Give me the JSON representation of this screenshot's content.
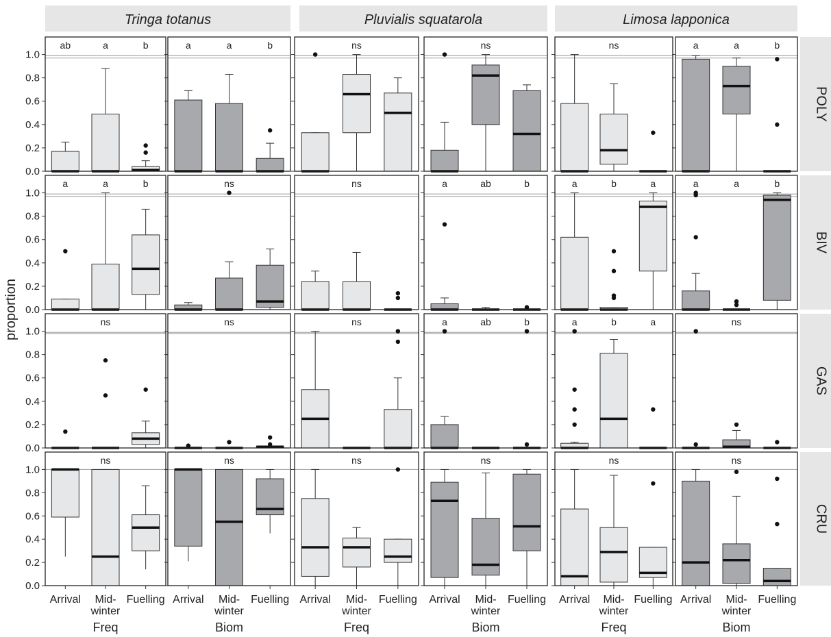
{
  "ylabel": "proportion",
  "yticks": [
    "0.0",
    "0.2",
    "0.4",
    "0.6",
    "0.8",
    "1.0"
  ],
  "species": [
    {
      "name": "Tringa totanus"
    },
    {
      "name": "Pluvialis squatarola"
    },
    {
      "name": "Limosa lapponica"
    }
  ],
  "prey": [
    "POLY",
    "BIV",
    "GAS",
    "CRU"
  ],
  "measures": [
    "Freq",
    "Biom"
  ],
  "periods": [
    [
      "Arrival"
    ],
    [
      "Mid-",
      "winter"
    ],
    [
      "Fuelling"
    ]
  ],
  "colors": {
    "Freq": "#e6e7e9",
    "Biom": "#a8a9ad",
    "strip": "#e6e6e6",
    "refline": "#aaaaaa"
  },
  "chart_data": {
    "type": "boxplot",
    "ylim": [
      0,
      1.15
    ],
    "facets": [
      {
        "species": "Tringa totanus",
        "measure": "Freq",
        "prey": "POLY",
        "sig": [
          "ab",
          "a",
          "b"
        ],
        "refline": [
          0.97,
          0.99
        ],
        "boxes": [
          {
            "q1": 0,
            "med": 0,
            "q3": 0.17,
            "lo": 0,
            "hi": 0.25,
            "out": []
          },
          {
            "q1": 0,
            "med": 0,
            "q3": 0.49,
            "lo": 0,
            "hi": 0.88,
            "out": []
          },
          {
            "q1": 0,
            "med": 0.01,
            "q3": 0.04,
            "lo": 0,
            "hi": 0.09,
            "out": [
              0.16,
              0.22
            ]
          }
        ]
      },
      {
        "species": "Tringa totanus",
        "measure": "Biom",
        "prey": "POLY",
        "sig": [
          "a",
          "a",
          "b"
        ],
        "refline": [
          0.97,
          0.99
        ],
        "boxes": [
          {
            "q1": 0,
            "med": 0,
            "q3": 0.61,
            "lo": 0,
            "hi": 0.69,
            "out": []
          },
          {
            "q1": 0,
            "med": 0,
            "q3": 0.58,
            "lo": 0,
            "hi": 0.83,
            "out": []
          },
          {
            "q1": 0,
            "med": 0,
            "q3": 0.11,
            "lo": 0,
            "hi": 0.24,
            "out": [
              0.35
            ]
          }
        ]
      },
      {
        "species": "Pluvialis squatarola",
        "measure": "Freq",
        "prey": "POLY",
        "sig": [
          "ns"
        ],
        "refline": [
          0.97,
          0.99
        ],
        "boxes": [
          {
            "q1": 0,
            "med": 0,
            "q3": 0.33,
            "lo": 0,
            "hi": 0.33,
            "out": [
              1.0
            ]
          },
          {
            "q1": 0.33,
            "med": 0.66,
            "q3": 0.83,
            "lo": 0,
            "hi": 1.0,
            "out": []
          },
          {
            "q1": 0,
            "med": 0.5,
            "q3": 0.67,
            "lo": 0,
            "hi": 0.8,
            "out": []
          }
        ]
      },
      {
        "species": "Pluvialis squatarola",
        "measure": "Biom",
        "prey": "POLY",
        "sig": [
          "ns"
        ],
        "refline": [
          0.97,
          0.99
        ],
        "boxes": [
          {
            "q1": 0,
            "med": 0,
            "q3": 0.18,
            "lo": 0,
            "hi": 0.42,
            "out": [
              1.0
            ]
          },
          {
            "q1": 0.4,
            "med": 0.82,
            "q3": 0.91,
            "lo": 0,
            "hi": 1.0,
            "out": []
          },
          {
            "q1": 0,
            "med": 0.32,
            "q3": 0.69,
            "lo": 0,
            "hi": 0.74,
            "out": []
          }
        ]
      },
      {
        "species": "Limosa lapponica",
        "measure": "Freq",
        "prey": "POLY",
        "sig": [
          "ns"
        ],
        "refline": [
          0.97,
          0.99
        ],
        "boxes": [
          {
            "q1": 0,
            "med": 0,
            "q3": 0.58,
            "lo": 0,
            "hi": 1.0,
            "out": []
          },
          {
            "q1": 0.06,
            "med": 0.18,
            "q3": 0.49,
            "lo": 0,
            "hi": 0.75,
            "out": []
          },
          {
            "q1": 0,
            "med": 0,
            "q3": 0,
            "lo": 0,
            "hi": 0,
            "out": [
              0.33
            ]
          }
        ]
      },
      {
        "species": "Limosa lapponica",
        "measure": "Biom",
        "prey": "POLY",
        "sig": [
          "a",
          "a",
          "b"
        ],
        "refline": [
          0.97,
          0.99
        ],
        "boxes": [
          {
            "q1": 0,
            "med": 0,
            "q3": 0.96,
            "lo": 0,
            "hi": 0.99,
            "out": []
          },
          {
            "q1": 0.49,
            "med": 0.73,
            "q3": 0.9,
            "lo": 0,
            "hi": 0.97,
            "out": []
          },
          {
            "q1": 0,
            "med": 0,
            "q3": 0,
            "lo": 0,
            "hi": 0,
            "out": [
              0.4,
              0.96
            ]
          }
        ]
      },
      {
        "species": "Tringa totanus",
        "measure": "Freq",
        "prey": "BIV",
        "sig": [
          "a",
          "a",
          "b"
        ],
        "refline": [
          0.97,
          0.99
        ],
        "boxes": [
          {
            "q1": 0,
            "med": 0,
            "q3": 0.09,
            "lo": 0,
            "hi": 0.09,
            "out": [
              0.5
            ]
          },
          {
            "q1": 0,
            "med": 0,
            "q3": 0.39,
            "lo": 0,
            "hi": 1.0,
            "out": []
          },
          {
            "q1": 0.13,
            "med": 0.35,
            "q3": 0.64,
            "lo": 0,
            "hi": 0.86,
            "out": []
          }
        ]
      },
      {
        "species": "Tringa totanus",
        "measure": "Biom",
        "prey": "BIV",
        "sig": [
          "ns"
        ],
        "refline": [
          0.97,
          0.99
        ],
        "boxes": [
          {
            "q1": 0,
            "med": 0,
            "q3": 0.04,
            "lo": 0,
            "hi": 0.06,
            "out": []
          },
          {
            "q1": 0,
            "med": 0,
            "q3": 0.27,
            "lo": 0,
            "hi": 0.41,
            "out": [
              1.0
            ]
          },
          {
            "q1": 0.02,
            "med": 0.07,
            "q3": 0.38,
            "lo": 0,
            "hi": 0.52,
            "out": []
          }
        ]
      },
      {
        "species": "Pluvialis squatarola",
        "measure": "Freq",
        "prey": "BIV",
        "sig": [
          "ns"
        ],
        "refline": [
          0.97,
          0.99
        ],
        "boxes": [
          {
            "q1": 0,
            "med": 0,
            "q3": 0.24,
            "lo": 0,
            "hi": 0.33,
            "out": []
          },
          {
            "q1": 0,
            "med": 0,
            "q3": 0.24,
            "lo": 0,
            "hi": 0.49,
            "out": []
          },
          {
            "q1": 0,
            "med": 0,
            "q3": 0,
            "lo": 0,
            "hi": 0,
            "out": [
              0.1,
              0.14
            ]
          }
        ]
      },
      {
        "species": "Pluvialis squatarola",
        "measure": "Biom",
        "prey": "BIV",
        "sig": [
          "a",
          "ab",
          "b"
        ],
        "refline": [
          0.97,
          0.99
        ],
        "boxes": [
          {
            "q1": 0,
            "med": 0,
            "q3": 0.05,
            "lo": 0,
            "hi": 0.1,
            "out": [
              0.73
            ]
          },
          {
            "q1": 0,
            "med": 0,
            "q3": 0,
            "lo": 0,
            "hi": 0.02,
            "out": []
          },
          {
            "q1": 0,
            "med": 0,
            "q3": 0,
            "lo": 0,
            "hi": 0,
            "out": [
              0.02
            ]
          }
        ]
      },
      {
        "species": "Limosa lapponica",
        "measure": "Freq",
        "prey": "BIV",
        "sig": [
          "a",
          "b",
          "a"
        ],
        "refline": [
          0.97,
          0.99
        ],
        "boxes": [
          {
            "q1": 0,
            "med": 0,
            "q3": 0.62,
            "lo": 0,
            "hi": 1.0,
            "out": []
          },
          {
            "q1": 0,
            "med": 0,
            "q3": 0.02,
            "lo": 0,
            "hi": 0.02,
            "out": [
              0.1,
              0.12,
              0.33,
              0.5
            ]
          },
          {
            "q1": 0.33,
            "med": 0.88,
            "q3": 0.93,
            "lo": 0,
            "hi": 1.0,
            "out": []
          }
        ]
      },
      {
        "species": "Limosa lapponica",
        "measure": "Biom",
        "prey": "BIV",
        "sig": [
          "a",
          "a",
          "b"
        ],
        "refline": [
          0.97,
          0.99
        ],
        "boxes": [
          {
            "q1": 0,
            "med": 0,
            "q3": 0.16,
            "lo": 0,
            "hi": 0.31,
            "out": [
              0.62,
              0.98,
              1.0
            ]
          },
          {
            "q1": 0,
            "med": 0,
            "q3": 0,
            "lo": 0,
            "hi": 0,
            "out": [
              0.04,
              0.07
            ]
          },
          {
            "q1": 0.08,
            "med": 0.94,
            "q3": 0.98,
            "lo": 0,
            "hi": 1.0,
            "out": []
          }
        ]
      },
      {
        "species": "Tringa totanus",
        "measure": "Freq",
        "prey": "GAS",
        "sig": [
          "ns"
        ],
        "refline": [
          0.98,
          0.99
        ],
        "boxes": [
          {
            "q1": 0,
            "med": 0,
            "q3": 0,
            "lo": 0,
            "hi": 0,
            "out": [
              0.14
            ]
          },
          {
            "q1": 0,
            "med": 0,
            "q3": 0,
            "lo": 0,
            "hi": 0,
            "out": [
              0.45,
              0.75
            ]
          },
          {
            "q1": 0.03,
            "med": 0.08,
            "q3": 0.13,
            "lo": 0,
            "hi": 0.23,
            "out": [
              0.5
            ]
          }
        ]
      },
      {
        "species": "Tringa totanus",
        "measure": "Biom",
        "prey": "GAS",
        "sig": [
          "ns"
        ],
        "refline": [
          0.98,
          0.99
        ],
        "boxes": [
          {
            "q1": 0,
            "med": 0,
            "q3": 0,
            "lo": 0,
            "hi": 0,
            "out": [
              0.02
            ]
          },
          {
            "q1": 0,
            "med": 0,
            "q3": 0,
            "lo": 0,
            "hi": 0,
            "out": [
              0.05
            ]
          },
          {
            "q1": 0,
            "med": 0.01,
            "q3": 0.01,
            "lo": 0,
            "hi": 0.01,
            "out": [
              0.03,
              0.09
            ]
          }
        ]
      },
      {
        "species": "Pluvialis squatarola",
        "measure": "Freq",
        "prey": "GAS",
        "sig": [
          "ns"
        ],
        "refline": [
          0.98,
          0.99
        ],
        "boxes": [
          {
            "q1": 0,
            "med": 0.25,
            "q3": 0.5,
            "lo": 0,
            "hi": 1.0,
            "out": []
          },
          {
            "q1": 0,
            "med": 0,
            "q3": 0,
            "lo": 0,
            "hi": 0,
            "out": []
          },
          {
            "q1": 0,
            "med": 0,
            "q3": 0.33,
            "lo": 0,
            "hi": 0.6,
            "out": [
              0.91,
              1.0
            ]
          }
        ]
      },
      {
        "species": "Pluvialis squatarola",
        "measure": "Biom",
        "prey": "GAS",
        "sig": [
          "a",
          "ab",
          "b"
        ],
        "refline": [
          0.98,
          0.99
        ],
        "boxes": [
          {
            "q1": 0,
            "med": 0,
            "q3": 0.2,
            "lo": 0,
            "hi": 0.27,
            "out": [
              1.0
            ]
          },
          {
            "q1": 0,
            "med": 0,
            "q3": 0,
            "lo": 0,
            "hi": 0,
            "out": []
          },
          {
            "q1": 0,
            "med": 0,
            "q3": 0,
            "lo": 0,
            "hi": 0,
            "out": [
              0.03,
              1.0
            ]
          }
        ]
      },
      {
        "species": "Limosa lapponica",
        "measure": "Freq",
        "prey": "GAS",
        "sig": [
          "a",
          "b",
          "a"
        ],
        "refline": [
          0.98,
          0.99
        ],
        "boxes": [
          {
            "q1": 0,
            "med": 0,
            "q3": 0.04,
            "lo": 0,
            "hi": 0.05,
            "out": [
              0.2,
              0.33,
              0.5,
              1.0
            ]
          },
          {
            "q1": 0,
            "med": 0.25,
            "q3": 0.81,
            "lo": 0,
            "hi": 0.93,
            "out": []
          },
          {
            "q1": 0,
            "med": 0,
            "q3": 0,
            "lo": 0,
            "hi": 0,
            "out": [
              0.33
            ]
          }
        ]
      },
      {
        "species": "Limosa lapponica",
        "measure": "Biom",
        "prey": "GAS",
        "sig": [
          "ns"
        ],
        "refline": [
          0.98,
          0.99
        ],
        "boxes": [
          {
            "q1": 0,
            "med": 0,
            "q3": 0,
            "lo": 0,
            "hi": 0,
            "out": [
              0.03,
              1.0
            ]
          },
          {
            "q1": 0,
            "med": 0.01,
            "q3": 0.07,
            "lo": 0,
            "hi": 0.15,
            "out": [
              0.2
            ]
          },
          {
            "q1": 0,
            "med": 0,
            "q3": 0,
            "lo": 0,
            "hi": 0,
            "out": [
              0.05
            ]
          }
        ]
      },
      {
        "species": "Tringa totanus",
        "measure": "Freq",
        "prey": "CRU",
        "sig": [
          "ns"
        ],
        "refline": [
          1.0
        ],
        "boxes": [
          {
            "q1": 0.59,
            "med": 1.0,
            "q3": 1.0,
            "lo": 0.25,
            "hi": 1.0,
            "out": []
          },
          {
            "q1": 0,
            "med": 0.25,
            "q3": 1.0,
            "lo": 0,
            "hi": 1.0,
            "out": []
          },
          {
            "q1": 0.3,
            "med": 0.5,
            "q3": 0.61,
            "lo": 0.14,
            "hi": 0.86,
            "out": []
          }
        ]
      },
      {
        "species": "Tringa totanus",
        "measure": "Biom",
        "prey": "CRU",
        "sig": [
          "ns"
        ],
        "refline": [
          1.0
        ],
        "boxes": [
          {
            "q1": 0.34,
            "med": 1.0,
            "q3": 1.0,
            "lo": 0.21,
            "hi": 1.0,
            "out": []
          },
          {
            "q1": 0,
            "med": 0.55,
            "q3": 1.0,
            "lo": 0,
            "hi": 1.0,
            "out": []
          },
          {
            "q1": 0.61,
            "med": 0.66,
            "q3": 0.92,
            "lo": 0.45,
            "hi": 1.0,
            "out": []
          }
        ]
      },
      {
        "species": "Pluvialis squatarola",
        "measure": "Freq",
        "prey": "CRU",
        "sig": [
          "ns"
        ],
        "refline": [
          1.0
        ],
        "boxes": [
          {
            "q1": 0.08,
            "med": 0.33,
            "q3": 0.75,
            "lo": 0,
            "hi": 1.0,
            "out": []
          },
          {
            "q1": 0.16,
            "med": 0.33,
            "q3": 0.41,
            "lo": 0,
            "hi": 0.5,
            "out": []
          },
          {
            "q1": 0.2,
            "med": 0.25,
            "q3": 0.4,
            "lo": 0,
            "hi": 0.4,
            "out": [
              1.0
            ]
          }
        ]
      },
      {
        "species": "Pluvialis squatarola",
        "measure": "Biom",
        "prey": "CRU",
        "sig": [
          "ns"
        ],
        "refline": [
          1.0
        ],
        "boxes": [
          {
            "q1": 0.07,
            "med": 0.73,
            "q3": 0.89,
            "lo": 0,
            "hi": 1.0,
            "out": []
          },
          {
            "q1": 0.09,
            "med": 0.18,
            "q3": 0.58,
            "lo": 0,
            "hi": 0.97,
            "out": []
          },
          {
            "q1": 0.3,
            "med": 0.51,
            "q3": 0.96,
            "lo": 0,
            "hi": 1.0,
            "out": []
          }
        ]
      },
      {
        "species": "Limosa lapponica",
        "measure": "Freq",
        "prey": "CRU",
        "sig": [
          "ns"
        ],
        "refline": [
          1.0
        ],
        "boxes": [
          {
            "q1": 0,
            "med": 0.08,
            "q3": 0.66,
            "lo": 0,
            "hi": 1.0,
            "out": []
          },
          {
            "q1": 0.03,
            "med": 0.29,
            "q3": 0.5,
            "lo": 0,
            "hi": 0.95,
            "out": []
          },
          {
            "q1": 0.07,
            "med": 0.11,
            "q3": 0.33,
            "lo": 0,
            "hi": 0.33,
            "out": [
              0.88
            ]
          }
        ]
      },
      {
        "species": "Limosa lapponica",
        "measure": "Biom",
        "prey": "CRU",
        "sig": [
          "ns"
        ],
        "refline": [
          1.0
        ],
        "boxes": [
          {
            "q1": 0,
            "med": 0.2,
            "q3": 0.9,
            "lo": 0,
            "hi": 1.0,
            "out": []
          },
          {
            "q1": 0.02,
            "med": 0.22,
            "q3": 0.36,
            "lo": 0,
            "hi": 0.77,
            "out": [
              0.98
            ]
          },
          {
            "q1": 0,
            "med": 0.04,
            "q3": 0.15,
            "lo": 0,
            "hi": 0.15,
            "out": [
              0.53,
              0.92
            ]
          }
        ]
      }
    ]
  }
}
